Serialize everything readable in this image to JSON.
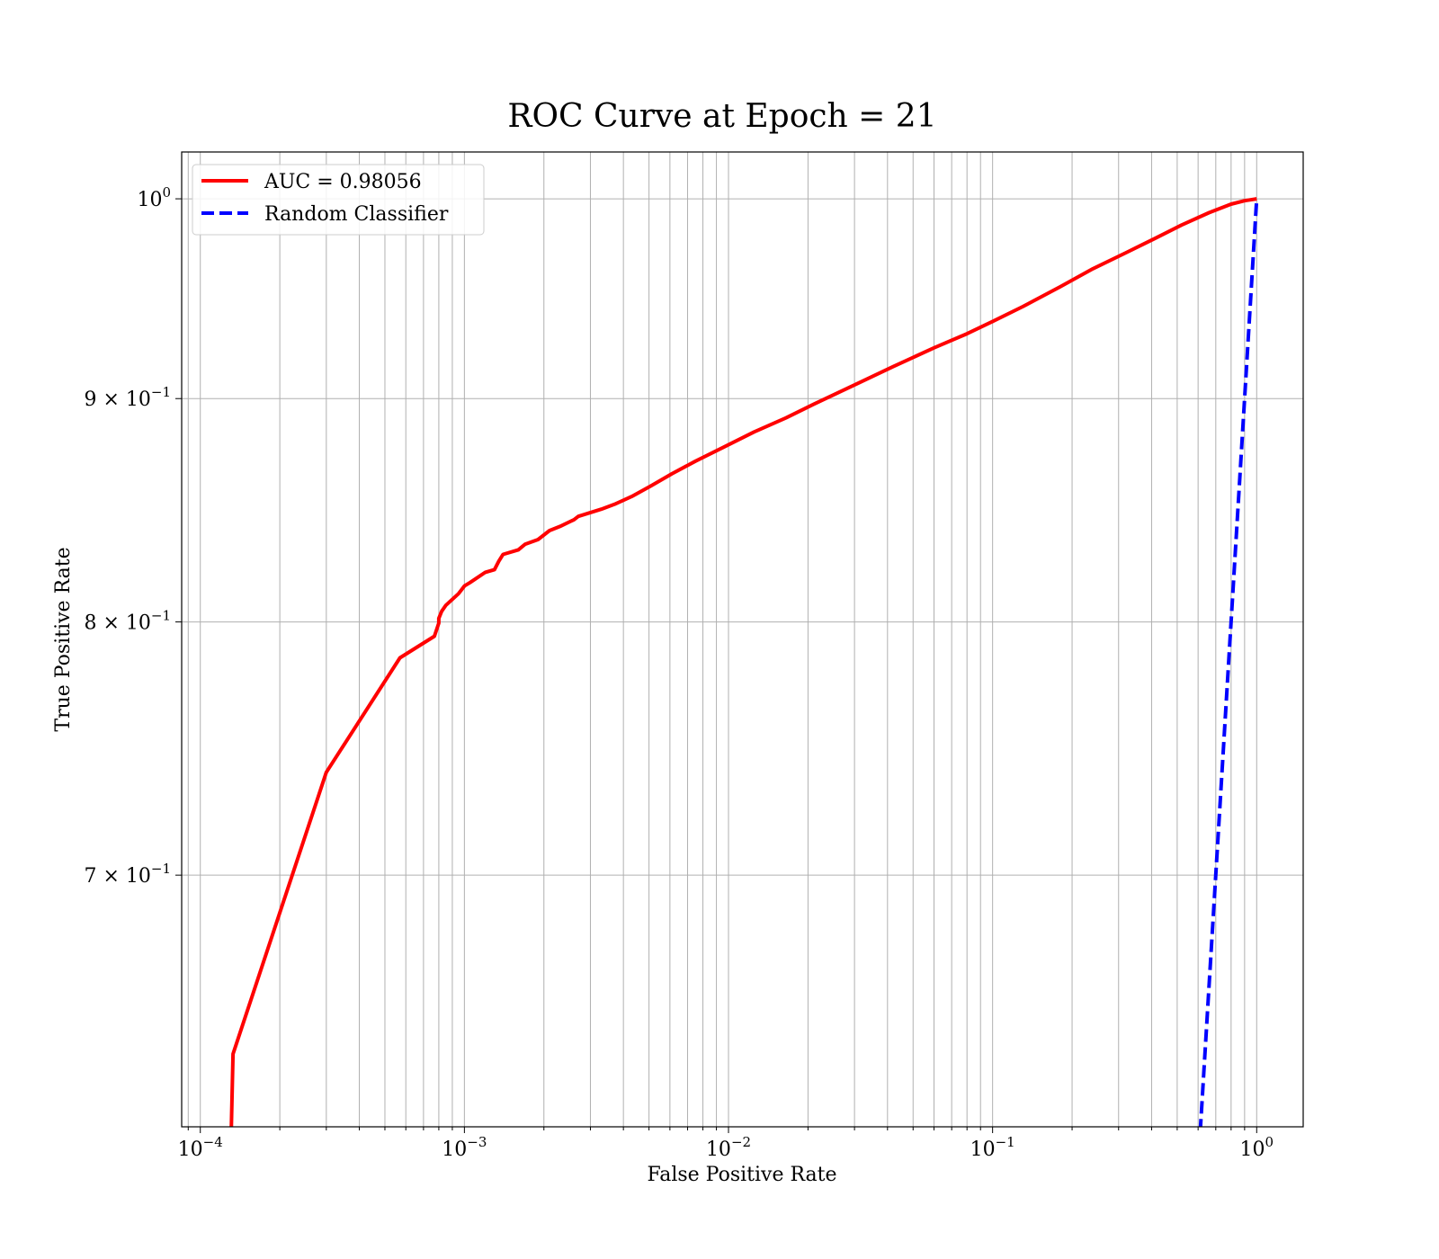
{
  "chart_data": {
    "type": "line",
    "title": "ROC Curve at Epoch = 21",
    "xlabel": "False Positive Rate",
    "ylabel": "True Positive Rate",
    "xscale": "log",
    "yscale": "log",
    "xlim": [
      8.5e-05,
      1.5
    ],
    "ylim": [
      0.613,
      1.025
    ],
    "grid": "on (major and minor)",
    "legend_position": "top-left",
    "x_ticks": [
      {
        "base": "10",
        "exp": "−4",
        "value": 0.0001
      },
      {
        "base": "10",
        "exp": "−3",
        "value": 0.001
      },
      {
        "base": "10",
        "exp": "−2",
        "value": 0.01
      },
      {
        "base": "10",
        "exp": "−1",
        "value": 0.1
      },
      {
        "base": "10",
        "exp": "0",
        "value": 1
      }
    ],
    "y_ticks": [
      {
        "mant": "",
        "base": "10",
        "exp": "0",
        "value": 1.0
      },
      {
        "mant": "9 × ",
        "base": "10",
        "exp": "−1",
        "value": 0.9
      },
      {
        "mant": "8 × ",
        "base": "10",
        "exp": "−1",
        "value": 0.8
      },
      {
        "mant": "7 × ",
        "base": "10",
        "exp": "−1",
        "value": 0.7
      }
    ],
    "series": [
      {
        "name": "AUC = 0.98056",
        "color": "#ff0000",
        "style": "solid",
        "x": [
          0.00013,
          0.000133,
          0.0003,
          0.00057,
          0.00077,
          0.0008,
          0.0008,
          0.00082,
          0.00085,
          0.00095,
          0.001,
          0.00105,
          0.0012,
          0.0013,
          0.00135,
          0.0014,
          0.0016,
          0.0017,
          0.0019,
          0.0021,
          0.0023,
          0.0026,
          0.0027,
          0.0033,
          0.0037,
          0.0043,
          0.0051,
          0.0061,
          0.0075,
          0.0095,
          0.0125,
          0.0165,
          0.021,
          0.0305,
          0.042,
          0.06,
          0.08,
          0.1,
          0.13,
          0.18,
          0.24,
          0.32,
          0.41,
          0.52,
          0.66,
          0.8,
          0.9,
          1.0
        ],
        "y": [
          0.6,
          0.637,
          0.739,
          0.785,
          0.794,
          0.7995,
          0.8015,
          0.8045,
          0.807,
          0.812,
          0.8153,
          0.8168,
          0.8212,
          0.8224,
          0.826,
          0.829,
          0.831,
          0.8335,
          0.8355,
          0.8395,
          0.8413,
          0.8443,
          0.8458,
          0.849,
          0.8512,
          0.8547,
          0.8596,
          0.865,
          0.8708,
          0.877,
          0.8843,
          0.8909,
          0.8973,
          0.9069,
          0.9153,
          0.9244,
          0.9313,
          0.9374,
          0.9447,
          0.9546,
          0.9638,
          0.972,
          0.9792,
          0.9863,
          0.9927,
          0.9972,
          0.999,
          1.0
        ]
      },
      {
        "name": "Random Classifier",
        "color": "#0000ff",
        "style": "dashed",
        "x": [
          0.6,
          1.0
        ],
        "y": [
          0.6,
          1.0
        ]
      }
    ]
  }
}
